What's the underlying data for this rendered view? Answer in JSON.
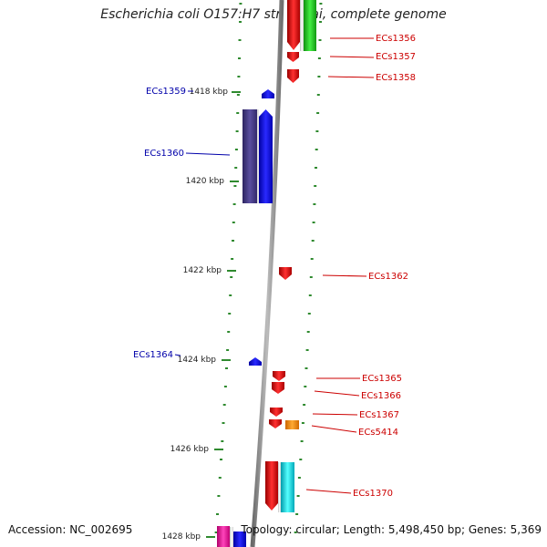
{
  "title": "Escherichia coli O157:H7 str. Sakai, complete genome",
  "footer": {
    "accession": "Accession: NC_002695",
    "topology": "Topology: circular; Length: 5,498,450 bp; Genes: 5,369"
  },
  "ticks": [
    {
      "label": "1418 kbp",
      "pos": 1418
    },
    {
      "label": "1420 kbp",
      "pos": 1420
    },
    {
      "label": "1422 kbp",
      "pos": 1422
    },
    {
      "label": "1424 kbp",
      "pos": 1424
    },
    {
      "label": "1426 kbp",
      "pos": 1426
    },
    {
      "label": "1428 kbp",
      "pos": 1428
    }
  ],
  "genes": [
    {
      "name": "ECs1356",
      "strand": "+",
      "color": "#ee1111",
      "label_color": "#cc0000"
    },
    {
      "name": "ECs1357",
      "strand": "+",
      "color": "#ee1111",
      "label_color": "#cc0000"
    },
    {
      "name": "ECs1358",
      "strand": "+",
      "color": "#ee1111",
      "label_color": "#cc0000"
    },
    {
      "name": "ECs1359",
      "strand": "-",
      "color": "#1111ee",
      "label_color": "#0000aa"
    },
    {
      "name": "ECs1360",
      "strand": "-",
      "color": "#1111ee",
      "label_color": "#0000aa"
    },
    {
      "name": "ECs1362",
      "strand": "+",
      "color": "#ee1111",
      "label_color": "#cc0000"
    },
    {
      "name": "ECs1364",
      "strand": "-",
      "color": "#1111ee",
      "label_color": "#0000aa"
    },
    {
      "name": "ECs1365",
      "strand": "+",
      "color": "#ee1111",
      "label_color": "#cc0000"
    },
    {
      "name": "ECs1366",
      "strand": "+",
      "color": "#ee1111",
      "label_color": "#cc0000"
    },
    {
      "name": "ECs1367",
      "strand": "+",
      "color": "#ee1111",
      "label_color": "#cc0000"
    },
    {
      "name": "ECs5414",
      "strand": "+",
      "color": "#ee1111",
      "label_color": "#cc0000"
    },
    {
      "name": "ECs1370",
      "strand": "+",
      "color": "#ee1111",
      "label_color": "#cc0000"
    }
  ],
  "colors": {
    "backbone": "#8c8c8c",
    "grid": "#2f8a2f",
    "forward": "#ee1111",
    "reverse": "#1111ee"
  }
}
